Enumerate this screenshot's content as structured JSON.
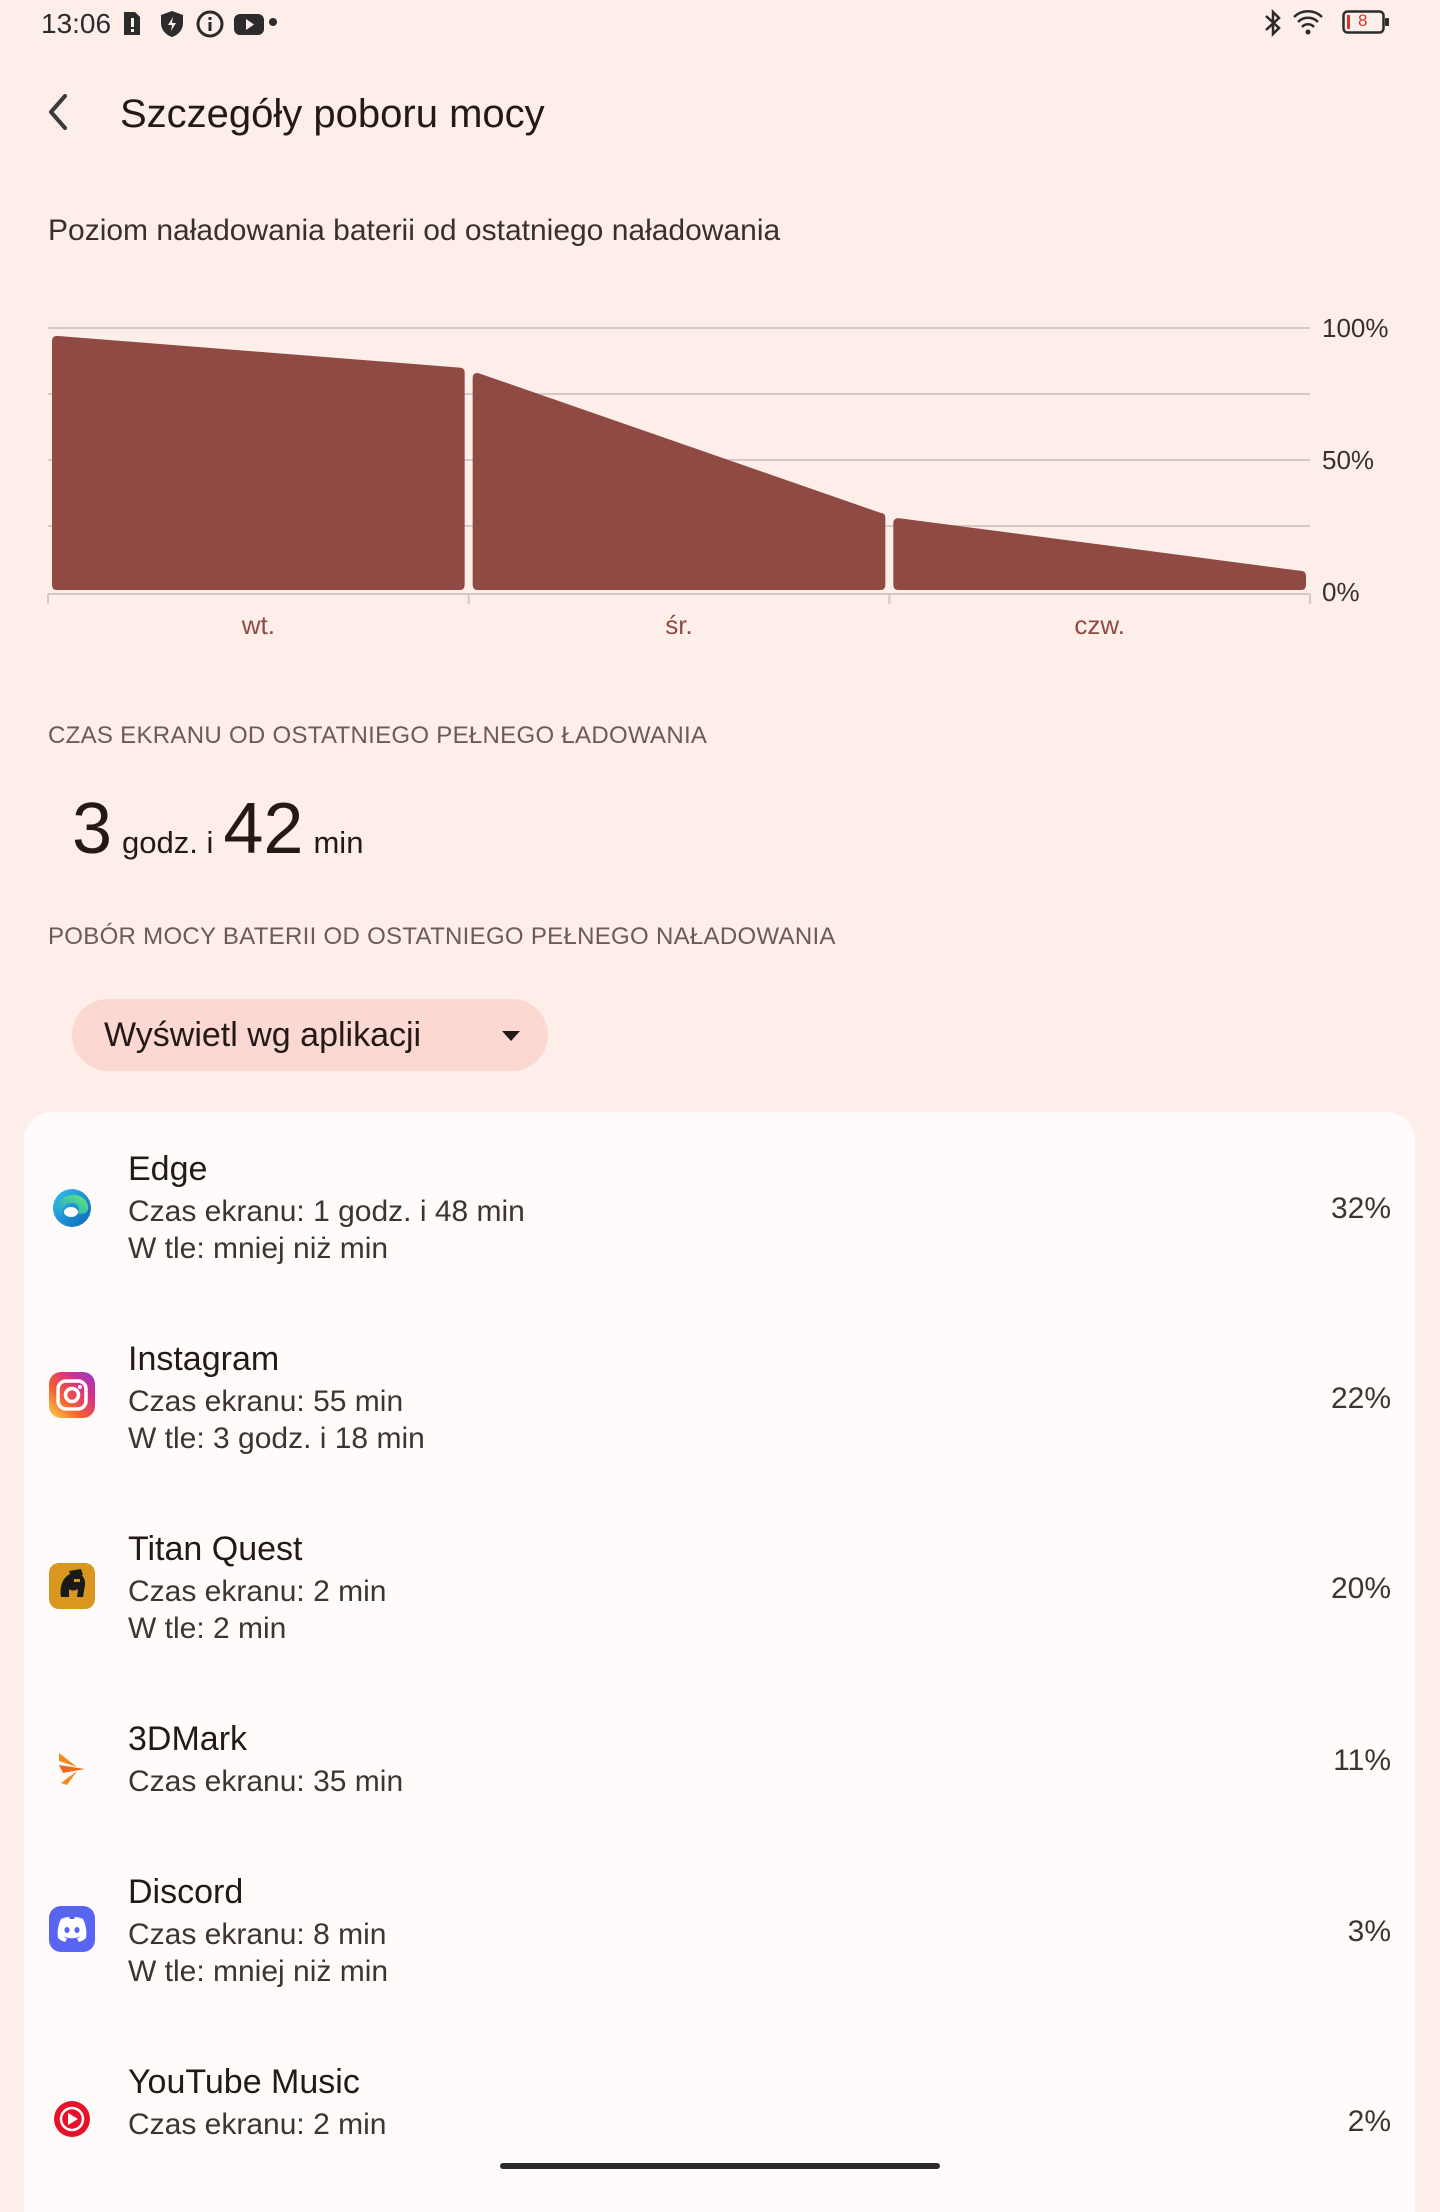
{
  "status_bar": {
    "time": "13:06",
    "left_icons": [
      "sim-alert-icon",
      "shield-icon",
      "info-icon",
      "youtube-icon",
      "dot-icon"
    ],
    "right_icons": [
      "bluetooth-icon",
      "wifi-icon",
      "battery-icon"
    ],
    "battery_level": "8"
  },
  "header": {
    "title": "Szczegóły poboru mocy",
    "back_icon": "back-arrow-icon"
  },
  "battery_section": {
    "description": "Poziom naładowania baterii od ostatniego naładowania"
  },
  "chart_data": {
    "type": "area",
    "x_categories": [
      "wt.",
      "śr.",
      "czw."
    ],
    "y_tick_labels": [
      "100%",
      "50%",
      "0%"
    ],
    "ylim": [
      0,
      100
    ],
    "grid": true,
    "fill_color": "#8f4b43",
    "series": [
      {
        "segment": "wt.",
        "points": [
          [
            0,
            97
          ],
          [
            1,
            85
          ]
        ]
      },
      {
        "segment": "śr.",
        "points": [
          [
            1,
            83
          ],
          [
            2,
            30
          ]
        ]
      },
      {
        "segment": "czw.",
        "points": [
          [
            2,
            28
          ],
          [
            3,
            8
          ]
        ]
      }
    ]
  },
  "screen_time": {
    "label": "CZAS EKRANU OD OSTATNIEGO PEŁNEGO ŁADOWANIA",
    "hours": "3",
    "hours_unit": "godz. i",
    "minutes": "42",
    "minutes_unit": "min"
  },
  "usage": {
    "label": "POBÓR MOCY BATERII OD OSTATNIEGO PEŁNEGO NAŁADOWANIA",
    "dropdown_value": "Wyświetl wg aplikacji"
  },
  "apps": [
    {
      "name": "Edge",
      "icon": "edge-icon",
      "line1": "Czas ekranu: 1 godz. i 48 min",
      "line2": "W tle: mniej niż min",
      "percent": "32%"
    },
    {
      "name": "Instagram",
      "icon": "instagram-icon",
      "line1": "Czas ekranu: 55 min",
      "line2": "W tle: 3 godz. i 18 min",
      "percent": "22%"
    },
    {
      "name": "Titan Quest",
      "icon": "titan-quest-icon",
      "line1": "Czas ekranu: 2 min",
      "line2": "W tle: 2 min",
      "percent": "20%"
    },
    {
      "name": "3DMark",
      "icon": "3dmark-icon",
      "line1": "Czas ekranu: 35 min",
      "line2": "",
      "percent": "11%"
    },
    {
      "name": "Discord",
      "icon": "discord-icon",
      "line1": "Czas ekranu: 8 min",
      "line2": "W tle: mniej niż min",
      "percent": "3%"
    },
    {
      "name": "YouTube Music",
      "icon": "youtube-music-icon",
      "line1": "Czas ekranu: 2 min",
      "line2": "",
      "percent": "2%"
    }
  ]
}
